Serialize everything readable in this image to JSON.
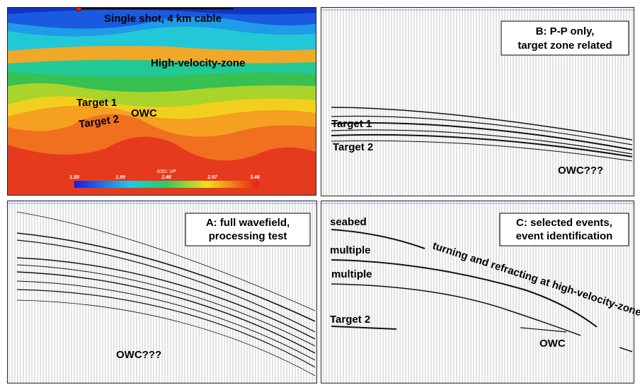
{
  "velocity_model": {
    "title": "Single shot, 4 km cable",
    "high_velocity_zone": "High-velocity-zone",
    "target_1": "Target 1",
    "target_2": "Target 2",
    "owc": "OWC",
    "colorbar": {
      "label": "N3D: VP",
      "ticks": [
        "1.50",
        "1.99",
        "2.48",
        "2.97",
        "3.46"
      ]
    }
  },
  "panel_b": {
    "caption": [
      "B: P-P only,",
      "target zone related"
    ],
    "target_1": "Target 1",
    "target_2": "Target 2",
    "owc": "OWC???"
  },
  "panel_a": {
    "caption": [
      "A: full wavefield,",
      "processing test"
    ],
    "owc": "OWC???"
  },
  "panel_c": {
    "caption": [
      "C: selected events,",
      "event identification"
    ],
    "seabed": "seabed",
    "multiple_1": "multiple",
    "multiple_2": "multiple",
    "turning": "turning and refracting at high-velocity-zone",
    "target_2": "Target 2",
    "owc": "OWC"
  }
}
